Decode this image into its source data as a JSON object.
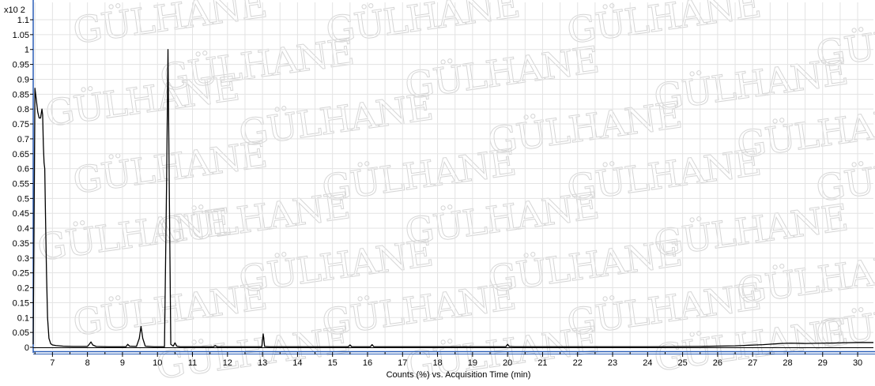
{
  "chart_data": {
    "type": "line",
    "xlabel": "Counts (%) vs. Acquisition Time (min)",
    "ylabel": "",
    "y_multiplier": "x10 2",
    "xlim": [
      6.45,
      30.45
    ],
    "ylim": [
      0,
      1.1
    ],
    "x_ticks": [
      7,
      8,
      9,
      10,
      11,
      12,
      13,
      14,
      15,
      16,
      17,
      18,
      19,
      20,
      21,
      22,
      23,
      24,
      25,
      26,
      27,
      28,
      29,
      30
    ],
    "y_ticks": [
      0,
      0.05,
      0.1,
      0.15,
      0.2,
      0.25,
      0.3,
      0.35,
      0.4,
      0.45,
      0.5,
      0.55,
      0.6,
      0.65,
      0.7,
      0.75,
      0.8,
      0.85,
      0.9,
      0.95,
      1,
      1.05,
      1.1
    ],
    "grid": true,
    "legend": "none",
    "series": [
      {
        "color": "#000000",
        "x": [
          6.45,
          6.5,
          6.53,
          6.58,
          6.62,
          6.66,
          6.7,
          6.72,
          6.74,
          6.76,
          6.78,
          6.8,
          6.83,
          6.86,
          6.9,
          6.95,
          7.0,
          7.1,
          7.3,
          7.6,
          8.0,
          8.05,
          8.1,
          8.15,
          8.25,
          8.6,
          9.1,
          9.15,
          9.2,
          9.4,
          9.48,
          9.53,
          9.58,
          9.65,
          9.9,
          10.2,
          10.26,
          10.3,
          10.34,
          10.38,
          10.45,
          10.5,
          10.55,
          10.65,
          11.0,
          11.6,
          11.65,
          11.7,
          12.5,
          12.98,
          13.02,
          13.06,
          13.2,
          14.5,
          15.45,
          15.5,
          15.55,
          16.08,
          16.13,
          16.18,
          18.0,
          19.95,
          20.0,
          20.05,
          20.2,
          22.0,
          24.0,
          25.5,
          26.5,
          27.3,
          27.8,
          28.1,
          28.5,
          29.0,
          29.5,
          30.0,
          30.45
        ],
        "y": [
          0.01,
          0.87,
          0.84,
          0.79,
          0.77,
          0.77,
          0.8,
          0.78,
          0.68,
          0.62,
          0.6,
          0.45,
          0.25,
          0.1,
          0.03,
          0.012,
          0.008,
          0.006,
          0.004,
          0.003,
          0.003,
          0.01,
          0.018,
          0.008,
          0.003,
          0.002,
          0.002,
          0.01,
          0.004,
          0.003,
          0.03,
          0.07,
          0.03,
          0.004,
          0.002,
          0.002,
          0.55,
          1.0,
          0.5,
          0.01,
          0.004,
          0.015,
          0.004,
          0.002,
          0.002,
          0.002,
          0.006,
          0.002,
          0.002,
          0.002,
          0.045,
          0.003,
          0.002,
          0.002,
          0.002,
          0.008,
          0.002,
          0.002,
          0.009,
          0.002,
          0.002,
          0.002,
          0.01,
          0.003,
          0.002,
          0.002,
          0.002,
          0.003,
          0.005,
          0.009,
          0.013,
          0.014,
          0.013,
          0.014,
          0.015,
          0.016,
          0.016
        ]
      }
    ]
  },
  "watermark": {
    "text": "GÜLHANE"
  }
}
